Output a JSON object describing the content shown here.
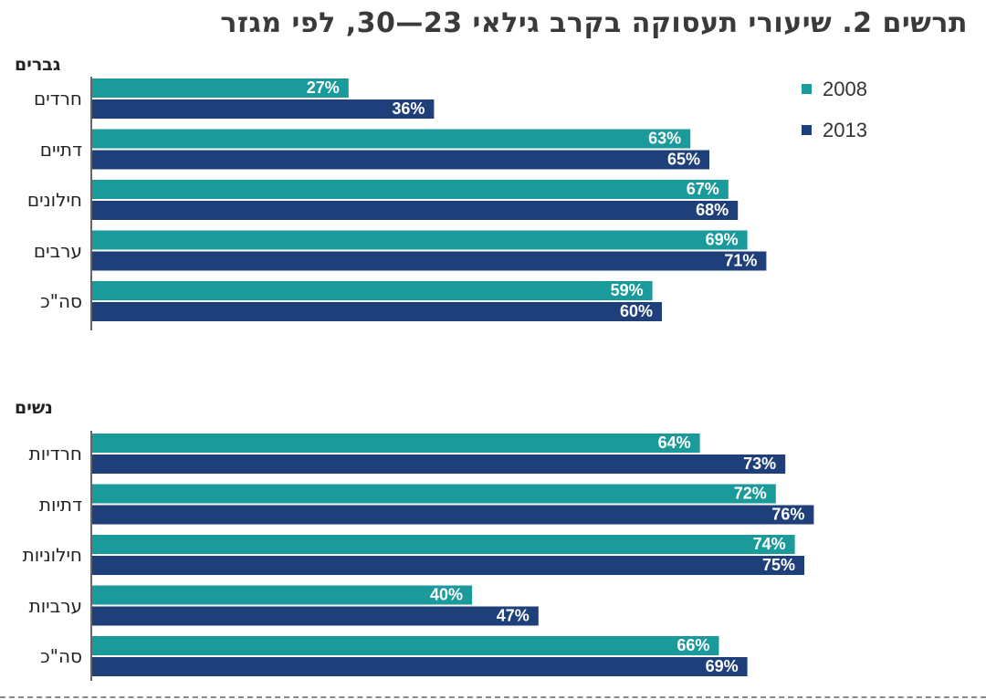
{
  "title": "תרשים 2. שיעורי תעסוקה בקרב גילאי 23—30, לפי מגזר",
  "colors": {
    "2008": "#1a9a9a",
    "2013": "#1f3f7a",
    "axis": "#333333",
    "label": "#ffffff"
  },
  "legend": [
    {
      "label": "2008",
      "color": "#1a9a9a"
    },
    {
      "label": "2013",
      "color": "#1f3f7a"
    }
  ],
  "chart_data": {
    "type": "bar",
    "orientation": "horizontal",
    "title": "תרשים 2. שיעורי תעסוקה בקרב גילאי 23—30, לפי מגזר",
    "value_suffix": "%",
    "series_names": [
      "2008",
      "2013"
    ],
    "groups": [
      {
        "label": "גברים",
        "categories": [
          "חרדים",
          "דתיים",
          "חילונים",
          "ערבים",
          "סה\"כ"
        ],
        "series": [
          {
            "name": "2008",
            "values": [
              27,
              63,
              67,
              69,
              59
            ]
          },
          {
            "name": "2013",
            "values": [
              36,
              65,
              68,
              71,
              60
            ]
          }
        ]
      },
      {
        "label": "נשים",
        "categories": [
          "חרדיות",
          "דתיות",
          "חילוניות",
          "ערביות",
          "סה\"כ"
        ],
        "series": [
          {
            "name": "2008",
            "values": [
              64,
              72,
              74,
              40,
              66
            ]
          },
          {
            "name": "2013",
            "values": [
              73,
              76,
              75,
              47,
              69
            ]
          }
        ]
      }
    ]
  }
}
